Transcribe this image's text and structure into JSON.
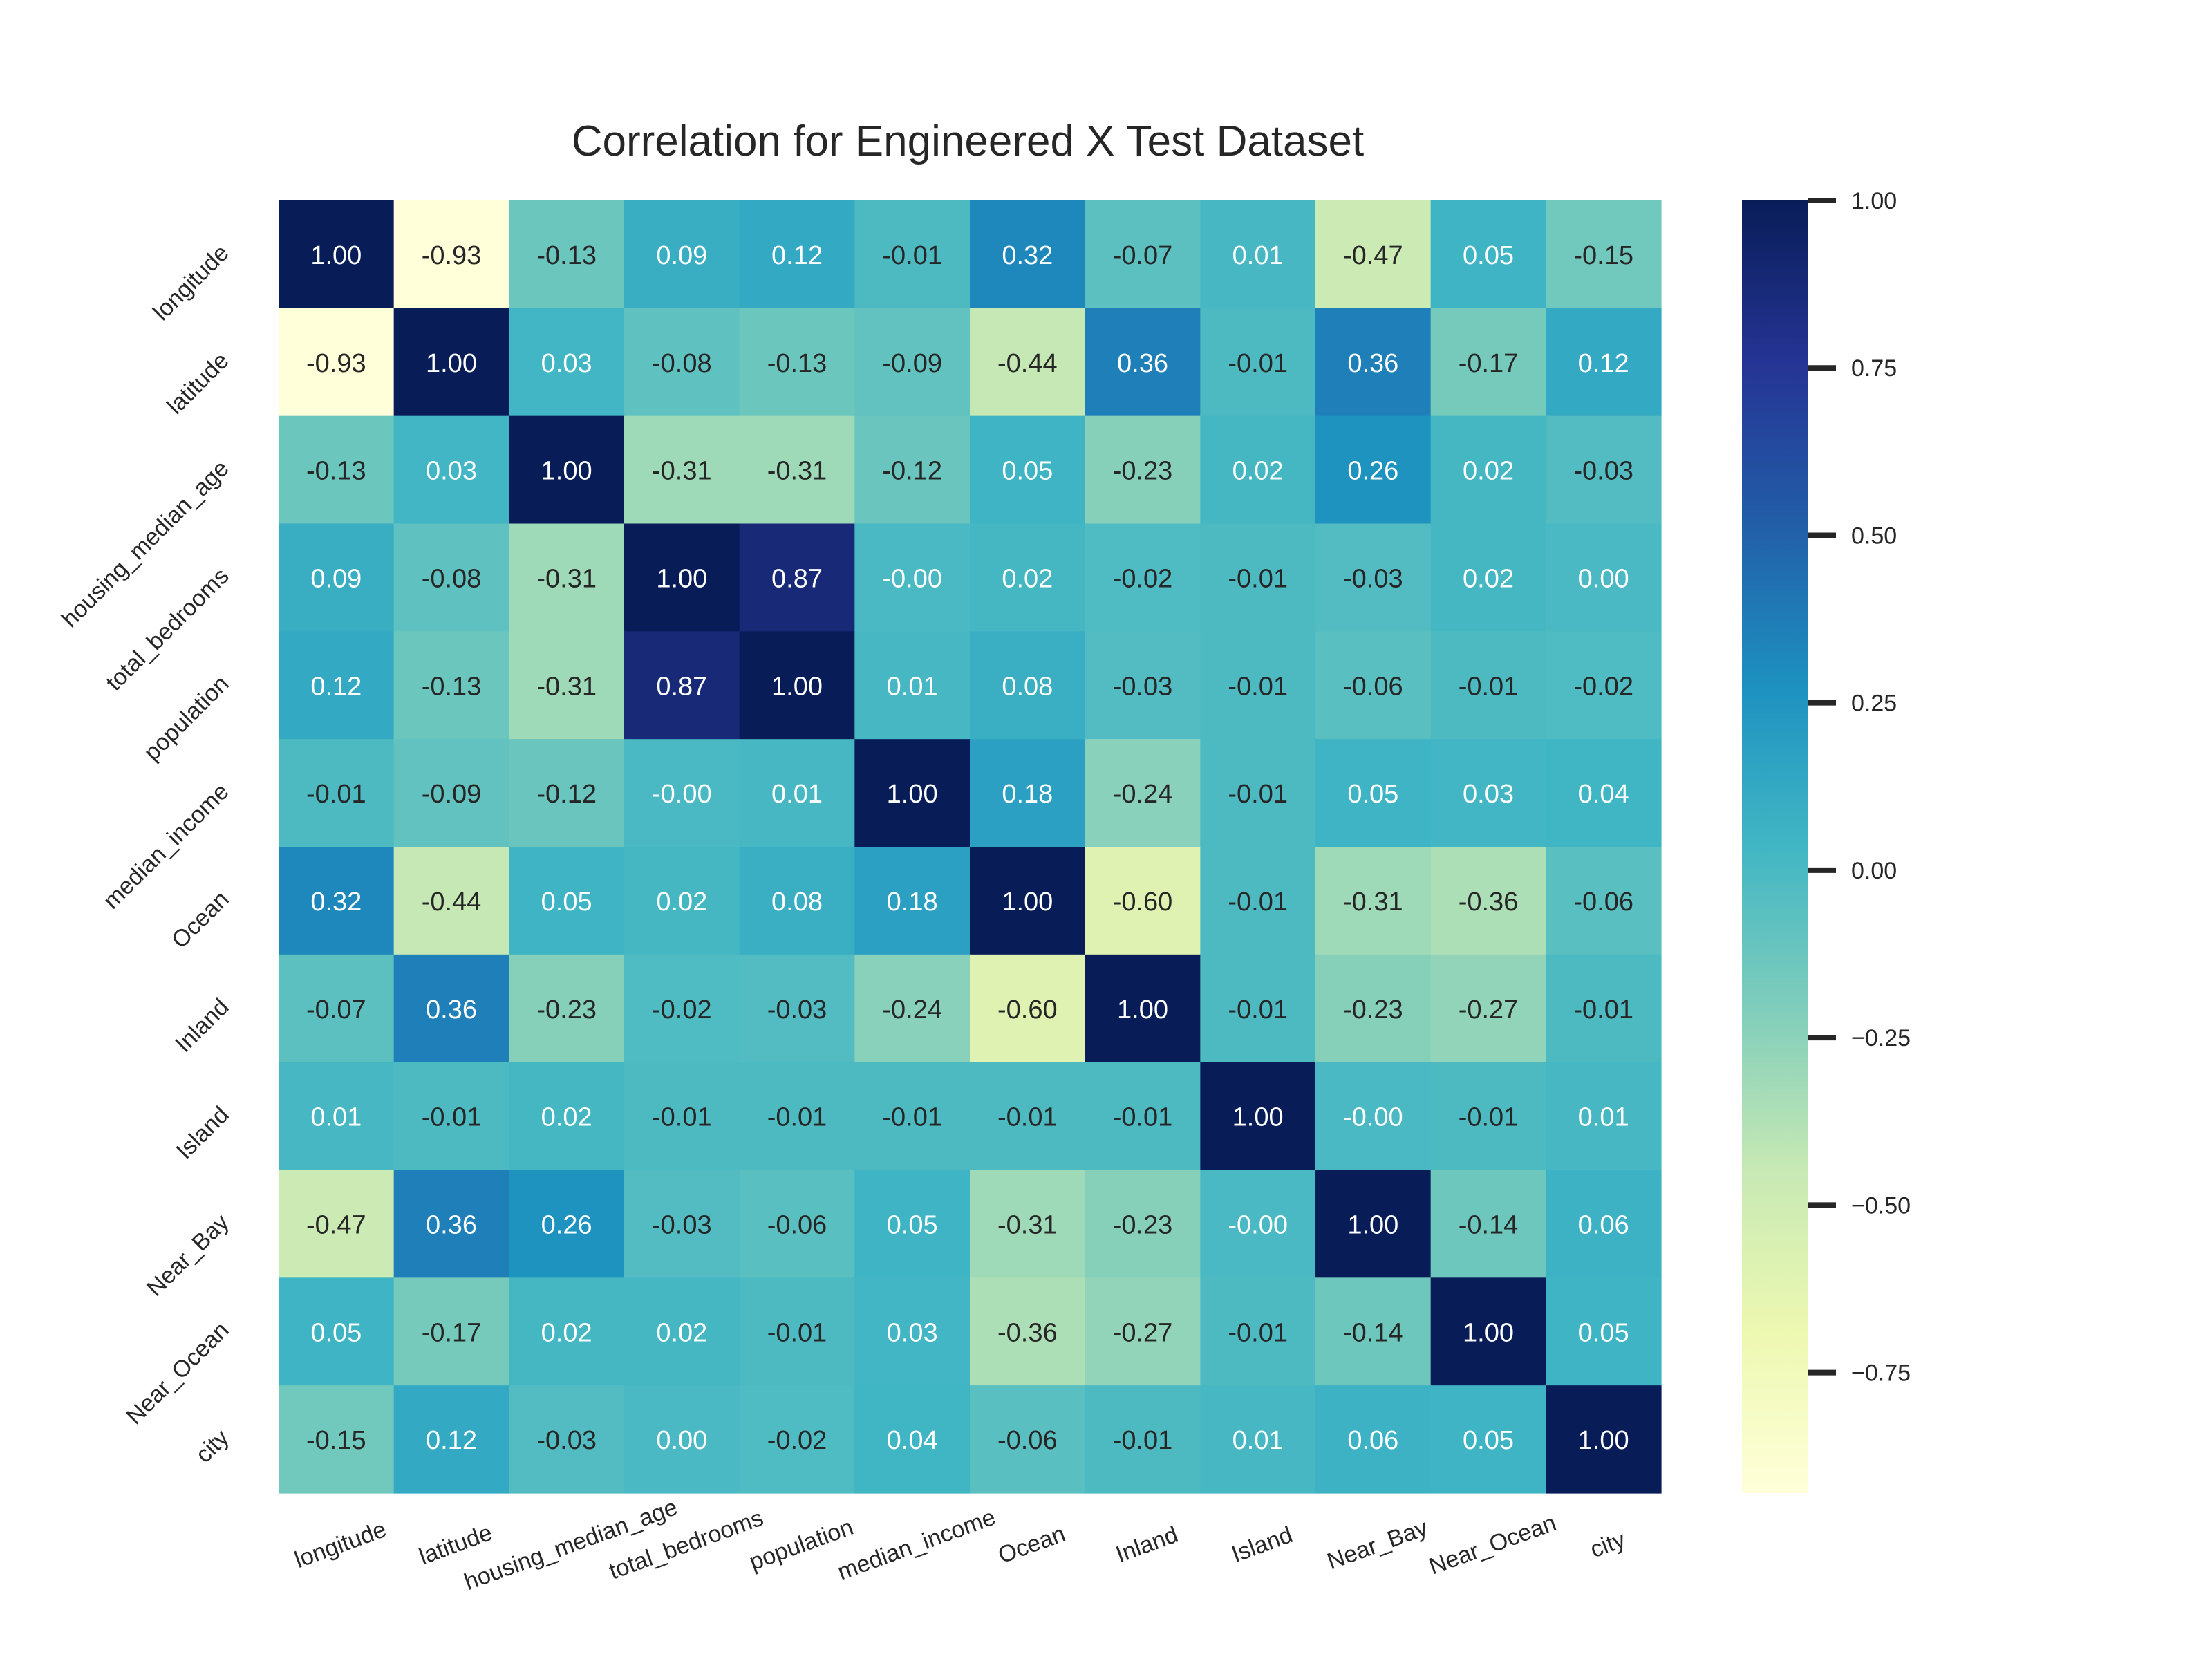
{
  "chart_data": {
    "type": "heatmap",
    "title": "Correlation for Engineered X Test Dataset",
    "labels": [
      "longitude",
      "latitude",
      "housing_median_age",
      "total_bedrooms",
      "population",
      "median_income",
      "Ocean",
      "Inland",
      "Island",
      "Near_Bay",
      "Near_Ocean",
      "city"
    ],
    "values": [
      [
        1.0,
        -0.93,
        -0.13,
        0.09,
        0.12,
        -0.01,
        0.32,
        -0.07,
        0.01,
        -0.47,
        0.05,
        -0.15
      ],
      [
        -0.93,
        1.0,
        0.03,
        -0.08,
        -0.13,
        -0.09,
        -0.44,
        0.36,
        -0.01,
        0.36,
        -0.17,
        0.12
      ],
      [
        -0.13,
        0.03,
        1.0,
        -0.31,
        -0.31,
        -0.12,
        0.05,
        -0.23,
        0.02,
        0.26,
        0.02,
        -0.03
      ],
      [
        0.09,
        -0.08,
        -0.31,
        1.0,
        0.87,
        -0.0,
        0.02,
        -0.02,
        -0.01,
        -0.03,
        0.02,
        0.0
      ],
      [
        0.12,
        -0.13,
        -0.31,
        0.87,
        1.0,
        0.01,
        0.08,
        -0.03,
        -0.01,
        -0.06,
        -0.01,
        -0.02
      ],
      [
        -0.01,
        -0.09,
        -0.12,
        -0.0,
        0.01,
        1.0,
        0.18,
        -0.24,
        -0.01,
        0.05,
        0.03,
        0.04
      ],
      [
        0.32,
        -0.44,
        0.05,
        0.02,
        0.08,
        0.18,
        1.0,
        -0.6,
        -0.01,
        -0.31,
        -0.36,
        -0.06
      ],
      [
        -0.07,
        0.36,
        -0.23,
        -0.02,
        -0.03,
        -0.24,
        -0.6,
        1.0,
        -0.01,
        -0.23,
        -0.27,
        -0.01
      ],
      [
        0.01,
        -0.01,
        0.02,
        -0.01,
        -0.01,
        -0.01,
        -0.01,
        -0.01,
        1.0,
        -0.0,
        -0.01,
        0.01
      ],
      [
        -0.47,
        0.36,
        0.26,
        -0.03,
        -0.06,
        0.05,
        -0.31,
        -0.23,
        -0.0,
        1.0,
        -0.14,
        0.06
      ],
      [
        0.05,
        -0.17,
        0.02,
        0.02,
        -0.01,
        0.03,
        -0.36,
        -0.27,
        -0.01,
        -0.14,
        1.0,
        0.05
      ],
      [
        -0.15,
        0.12,
        -0.03,
        0.0,
        -0.02,
        0.04,
        -0.06,
        -0.01,
        0.01,
        0.06,
        0.05,
        1.0
      ]
    ],
    "value_labels": [
      [
        "1.00",
        "-0.93",
        "-0.13",
        "0.09",
        "0.12",
        "-0.01",
        "0.32",
        "-0.07",
        "0.01",
        "-0.47",
        "0.05",
        "-0.15"
      ],
      [
        "-0.93",
        "1.00",
        "0.03",
        "-0.08",
        "-0.13",
        "-0.09",
        "-0.44",
        "0.36",
        "-0.01",
        "0.36",
        "-0.17",
        "0.12"
      ],
      [
        "-0.13",
        "0.03",
        "1.00",
        "-0.31",
        "-0.31",
        "-0.12",
        "0.05",
        "-0.23",
        "0.02",
        "0.26",
        "0.02",
        "-0.03"
      ],
      [
        "0.09",
        "-0.08",
        "-0.31",
        "1.00",
        "0.87",
        "-0.00",
        "0.02",
        "-0.02",
        "-0.01",
        "-0.03",
        "0.02",
        "0.00"
      ],
      [
        "0.12",
        "-0.13",
        "-0.31",
        "0.87",
        "1.00",
        "0.01",
        "0.08",
        "-0.03",
        "-0.01",
        "-0.06",
        "-0.01",
        "-0.02"
      ],
      [
        "-0.01",
        "-0.09",
        "-0.12",
        "-0.00",
        "0.01",
        "1.00",
        "0.18",
        "-0.24",
        "-0.01",
        "0.05",
        "0.03",
        "0.04"
      ],
      [
        "0.32",
        "-0.44",
        "0.05",
        "0.02",
        "0.08",
        "0.18",
        "1.00",
        "-0.60",
        "-0.01",
        "-0.31",
        "-0.36",
        "-0.06"
      ],
      [
        "-0.07",
        "0.36",
        "-0.23",
        "-0.02",
        "-0.03",
        "-0.24",
        "-0.60",
        "1.00",
        "-0.01",
        "-0.23",
        "-0.27",
        "-0.01"
      ],
      [
        "0.01",
        "-0.01",
        "0.02",
        "-0.01",
        "-0.01",
        "-0.01",
        "-0.01",
        "-0.01",
        "1.00",
        "-0.00",
        "-0.01",
        "0.01"
      ],
      [
        "-0.47",
        "0.36",
        "0.26",
        "-0.03",
        "-0.06",
        "0.05",
        "-0.31",
        "-0.23",
        "-0.00",
        "1.00",
        "-0.14",
        "0.06"
      ],
      [
        "0.05",
        "-0.17",
        "0.02",
        "0.02",
        "-0.01",
        "0.03",
        "-0.36",
        "-0.27",
        "-0.01",
        "-0.14",
        "1.00",
        "0.05"
      ],
      [
        "-0.15",
        "0.12",
        "-0.03",
        "0.00",
        "-0.02",
        "0.04",
        "-0.06",
        "-0.01",
        "0.01",
        "0.06",
        "0.05",
        "1.00"
      ]
    ],
    "colormap": "YlGnBu",
    "colormap_stops": [
      "#ffffd9",
      "#edf8b1",
      "#c7e9b4",
      "#7fcdbb",
      "#41b6c4",
      "#1d91c0",
      "#225ea8",
      "#253494",
      "#081d58"
    ],
    "vmin": -0.93,
    "vmax": 1.0,
    "colorbar": {
      "ticks": [
        1.0,
        0.75,
        0.5,
        0.25,
        0.0,
        -0.25,
        -0.5,
        -0.75
      ],
      "tick_labels": [
        "1.00",
        "0.75",
        "0.50",
        "0.25",
        "0.00",
        "−0.25",
        "−0.50",
        "−0.75"
      ]
    },
    "grid": false,
    "legend": "colorbar-right"
  }
}
